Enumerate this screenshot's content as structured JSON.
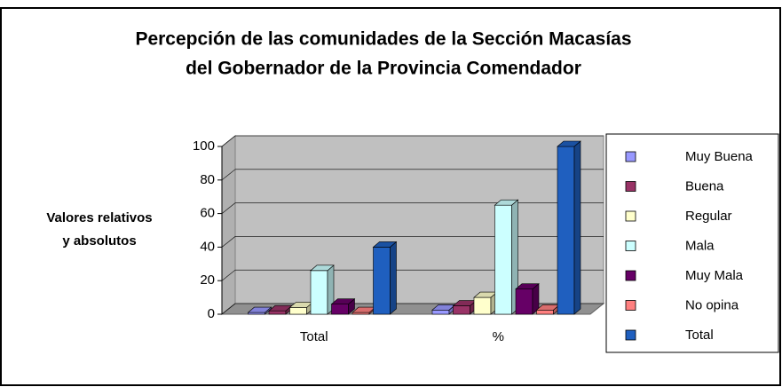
{
  "chart_data": {
    "type": "bar3d",
    "title": [
      "Percepción de las comunidades de la Sección Macasías",
      "del Gobernador de la Provincia Comendador"
    ],
    "ylabel": [
      "Valores relativos",
      "y absolutos"
    ],
    "categories": [
      "Total",
      "%"
    ],
    "ylim": [
      0,
      100
    ],
    "yticks": [
      0,
      20,
      40,
      60,
      80,
      100
    ],
    "grid": true,
    "legend": "right",
    "series": [
      {
        "name": "Muy Buena",
        "color": "#9999ff",
        "values": [
          1,
          2.5
        ]
      },
      {
        "name": "Buena",
        "color": "#993366",
        "values": [
          2,
          5
        ]
      },
      {
        "name": "Regular",
        "color": "#ffffcc",
        "values": [
          4,
          10
        ]
      },
      {
        "name": "Mala",
        "color": "#ccffff",
        "values": [
          26,
          65
        ]
      },
      {
        "name": "Muy Mala",
        "color": "#660066",
        "values": [
          6,
          15
        ]
      },
      {
        "name": "No opina",
        "color": "#ff8080",
        "values": [
          1,
          2.5
        ]
      },
      {
        "name": "Total",
        "color": "#1f5fbf",
        "values": [
          40,
          100
        ]
      }
    ]
  }
}
